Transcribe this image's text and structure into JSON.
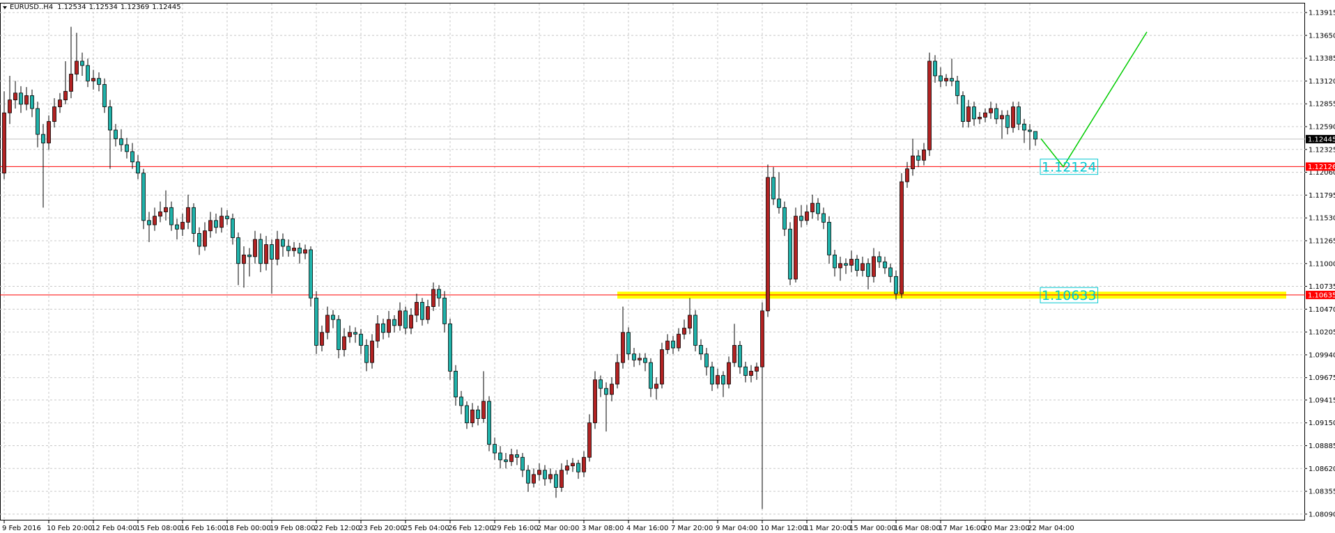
{
  "chart_data": {
    "type": "candlestick",
    "title": "EURUSD..H4",
    "up_color": "#b22222",
    "down_color": "#20b2aa",
    "grid": true,
    "ylim": [
      1.08,
      1.14
    ],
    "xlim": [
      -0.75,
      233.375
    ],
    "yticks": [
      1.13915,
      {
        "value": 1.1365,
        "label": "1.13650"
      },
      1.13385,
      {
        "value": 1.1312,
        "label": "1.13120"
      },
      1.12855,
      {
        "value": 1.1259,
        "label": "1.12590"
      },
      1.12325,
      {
        "value": 1.1206,
        "label": "1.12060"
      },
      1.11795,
      {
        "value": 1.1153,
        "label": "1.11530"
      },
      1.11265,
      {
        "value": 1.11,
        "label": "1.11000"
      },
      1.10735,
      {
        "value": 1.1047,
        "label": "1.10470"
      },
      1.10205,
      {
        "value": 1.0994,
        "label": "1.09940"
      },
      1.09675,
      1.09415,
      {
        "value": 1.0915,
        "label": "1.09150"
      },
      1.08885,
      {
        "value": 1.0862,
        "label": "1.08620"
      },
      1.08355,
      {
        "value": 1.0809,
        "label": "1.08090"
      }
    ],
    "xticks": [
      {
        "value": 0,
        "label": "9 Feb 2016"
      },
      {
        "value": 8,
        "label": "10 Feb 20:00"
      },
      {
        "value": 16,
        "label": "12 Feb 04:00"
      },
      {
        "value": 24,
        "label": "15 Feb 08:00"
      },
      {
        "value": 32,
        "label": "16 Feb 16:00"
      },
      {
        "value": 40,
        "label": "18 Feb 00:00"
      },
      {
        "value": 48,
        "label": "19 Feb 08:00"
      },
      {
        "value": 56,
        "label": "22 Feb 12:00"
      },
      {
        "value": 64,
        "label": "23 Feb 20:00"
      },
      {
        "value": 72,
        "label": "25 Feb 04:00"
      },
      {
        "value": 80,
        "label": "26 Feb 12:00"
      },
      {
        "value": 88,
        "label": "29 Feb 16:00"
      },
      {
        "value": 96,
        "label": "2 Mar 00:00"
      },
      {
        "value": 104,
        "label": "3 Mar 08:00"
      },
      {
        "value": 112,
        "label": "4 Mar 16:00"
      },
      {
        "value": 120,
        "label": "7 Mar 20:00"
      },
      {
        "value": 128,
        "label": "9 Mar 04:00"
      },
      {
        "value": 136,
        "label": "10 Mar 12:00"
      },
      {
        "value": 144,
        "label": "11 Mar 20:00"
      },
      {
        "value": 152,
        "label": "15 Mar 00:00"
      },
      {
        "value": 160,
        "label": "16 Mar 08:00"
      },
      {
        "value": 168,
        "label": "17 Mar 16:00"
      },
      {
        "value": 176,
        "label": "20 Mar 23:00"
      },
      {
        "value": 184,
        "label": "22 Mar 04:00"
      }
    ],
    "horizontal_lines": [
      {
        "value": 1.12126,
        "color": "#ff0000"
      },
      {
        "value": 1.10635,
        "color": "#ff0000"
      }
    ],
    "zone": {
      "price": 1.10633,
      "x": [
        110,
        230
      ],
      "color": "#ffff00"
    },
    "projection": {
      "x": [
        186,
        190,
        205
      ],
      "y": [
        1.1245,
        1.12124,
        1.1369
      ],
      "color": "#00cc00"
    },
    "annotation_color": "#00c8d0",
    "candles": [
      [
        1.1205,
        1.13,
        1.1198,
        1.1275
      ],
      [
        1.1275,
        1.1318,
        1.1262,
        1.129
      ],
      [
        1.129,
        1.1312,
        1.128,
        1.1298
      ],
      [
        1.1298,
        1.1306,
        1.1275,
        1.1285
      ],
      [
        1.1285,
        1.1305,
        1.1278,
        1.1295
      ],
      [
        1.1295,
        1.1302,
        1.127,
        1.128
      ],
      [
        1.128,
        1.1288,
        1.1235,
        1.125
      ],
      [
        1.125,
        1.1262,
        1.1165,
        1.124
      ],
      [
        1.124,
        1.1272,
        1.1232,
        1.1265
      ],
      [
        1.1265,
        1.1292,
        1.1258,
        1.1282
      ],
      [
        1.1282,
        1.1298,
        1.1275,
        1.129
      ],
      [
        1.129,
        1.1335,
        1.1285,
        1.13
      ],
      [
        1.13,
        1.1375,
        1.1292,
        1.132
      ],
      [
        1.132,
        1.1368,
        1.1312,
        1.1335
      ],
      [
        1.1335,
        1.1345,
        1.1318,
        1.133
      ],
      [
        1.133,
        1.1338,
        1.1305,
        1.1312
      ],
      [
        1.1312,
        1.1325,
        1.1302,
        1.1315
      ],
      [
        1.1315,
        1.1322,
        1.13,
        1.1308
      ],
      [
        1.1308,
        1.1315,
        1.1275,
        1.1282
      ],
      [
        1.1282,
        1.129,
        1.121,
        1.1255
      ],
      [
        1.1255,
        1.1262,
        1.1236,
        1.1245
      ],
      [
        1.1245,
        1.1256,
        1.123,
        1.1238
      ],
      [
        1.1238,
        1.1246,
        1.1222,
        1.123
      ],
      [
        1.123,
        1.124,
        1.121,
        1.1218
      ],
      [
        1.1218,
        1.1226,
        1.1198,
        1.1205
      ],
      [
        1.1205,
        1.121,
        1.114,
        1.115
      ],
      [
        1.115,
        1.116,
        1.1125,
        1.1145
      ],
      [
        1.1145,
        1.1165,
        1.1138,
        1.1155
      ],
      [
        1.1155,
        1.1172,
        1.1148,
        1.116
      ],
      [
        1.116,
        1.1185,
        1.115,
        1.1165
      ],
      [
        1.1165,
        1.1172,
        1.1138,
        1.1145
      ],
      [
        1.1145,
        1.1152,
        1.1128,
        1.114
      ],
      [
        1.114,
        1.1158,
        1.1132,
        1.1148
      ],
      [
        1.1148,
        1.118,
        1.114,
        1.1165
      ],
      [
        1.1165,
        1.117,
        1.1125,
        1.1135
      ],
      [
        1.1135,
        1.1142,
        1.111,
        1.112
      ],
      [
        1.112,
        1.1148,
        1.1115,
        1.1138
      ],
      [
        1.1138,
        1.116,
        1.113,
        1.115
      ],
      [
        1.115,
        1.1158,
        1.1135,
        1.1142
      ],
      [
        1.1142,
        1.1165,
        1.1136,
        1.1155
      ],
      [
        1.1155,
        1.1162,
        1.1145,
        1.1152
      ],
      [
        1.1152,
        1.1158,
        1.1122,
        1.113
      ],
      [
        1.113,
        1.1136,
        1.1075,
        1.11
      ],
      [
        1.11,
        1.112,
        1.1072,
        1.111
      ],
      [
        1.111,
        1.1118,
        1.1085,
        1.1108
      ],
      [
        1.1108,
        1.1138,
        1.11,
        1.1128
      ],
      [
        1.1128,
        1.1135,
        1.109,
        1.11
      ],
      [
        1.11,
        1.1132,
        1.1092,
        1.1122
      ],
      [
        1.1122,
        1.1128,
        1.1065,
        1.1105
      ],
      [
        1.1105,
        1.1138,
        1.1098,
        1.1128
      ],
      [
        1.1128,
        1.1135,
        1.1108,
        1.112
      ],
      [
        1.112,
        1.1128,
        1.1108,
        1.1115
      ],
      [
        1.1115,
        1.1125,
        1.1108,
        1.1118
      ],
      [
        1.1118,
        1.1124,
        1.11,
        1.1112
      ],
      [
        1.1112,
        1.1122,
        1.1105,
        1.1116
      ],
      [
        1.1116,
        1.112,
        1.105,
        1.106
      ],
      [
        1.106,
        1.1068,
        1.0995,
        1.1005
      ],
      [
        1.1005,
        1.1028,
        1.0998,
        1.102
      ],
      [
        1.102,
        1.105,
        1.1012,
        1.104
      ],
      [
        1.104,
        1.1046,
        1.1025,
        1.1035
      ],
      [
        1.1035,
        1.104,
        1.099,
        1.1
      ],
      [
        1.1,
        1.1025,
        1.0992,
        1.1015
      ],
      [
        1.1015,
        1.1028,
        1.1008,
        1.102
      ],
      [
        1.102,
        1.1026,
        1.1008,
        1.1018
      ],
      [
        1.1018,
        1.1024,
        1.0995,
        1.1005
      ],
      [
        1.1005,
        1.1012,
        1.0975,
        1.0985
      ],
      [
        1.0985,
        1.1018,
        1.0978,
        1.101
      ],
      [
        1.101,
        1.104,
        1.1002,
        1.103
      ],
      [
        1.103,
        1.1036,
        1.1012,
        1.102
      ],
      [
        1.102,
        1.1045,
        1.1014,
        1.1035
      ],
      [
        1.1035,
        1.104,
        1.102,
        1.1028
      ],
      [
        1.1028,
        1.1055,
        1.1022,
        1.1045
      ],
      [
        1.1045,
        1.105,
        1.1018,
        1.1025
      ],
      [
        1.1025,
        1.1048,
        1.1018,
        1.104
      ],
      [
        1.104,
        1.1065,
        1.1032,
        1.1055
      ],
      [
        1.1055,
        1.106,
        1.1028,
        1.1035
      ],
      [
        1.1035,
        1.1058,
        1.103,
        1.105
      ],
      [
        1.105,
        1.1078,
        1.1045,
        1.107
      ],
      [
        1.107,
        1.1075,
        1.105,
        1.106
      ],
      [
        1.106,
        1.1068,
        1.102,
        1.103
      ],
      [
        1.103,
        1.1036,
        1.0965,
        1.0975
      ],
      [
        1.0975,
        1.0982,
        1.0935,
        1.0945
      ],
      [
        1.0945,
        1.0952,
        1.0925,
        1.0935
      ],
      [
        1.0935,
        1.094,
        1.0908,
        1.0915
      ],
      [
        1.0915,
        1.0938,
        1.091,
        1.093
      ],
      [
        1.093,
        1.0935,
        1.0912,
        1.092
      ],
      [
        1.092,
        1.0975,
        1.0915,
        1.094
      ],
      [
        1.094,
        1.0946,
        1.0882,
        1.089
      ],
      [
        1.089,
        1.0898,
        1.0872,
        1.088
      ],
      [
        1.088,
        1.0888,
        1.0862,
        1.0872
      ],
      [
        1.0872,
        1.088,
        1.0862,
        1.087
      ],
      [
        1.087,
        1.0885,
        1.0865,
        1.0878
      ],
      [
        1.0878,
        1.0884,
        1.0866,
        1.0875
      ],
      [
        1.0875,
        1.088,
        1.0852,
        1.086
      ],
      [
        1.086,
        1.0866,
        1.0835,
        1.0845
      ],
      [
        1.0845,
        1.0862,
        1.084,
        1.0855
      ],
      [
        1.0855,
        1.0868,
        1.0848,
        1.086
      ],
      [
        1.086,
        1.0866,
        1.0842,
        1.085
      ],
      [
        1.085,
        1.0862,
        1.0845,
        1.0855
      ],
      [
        1.0855,
        1.086,
        1.0828,
        1.084
      ],
      [
        1.084,
        1.0868,
        1.0835,
        1.086
      ],
      [
        1.086,
        1.0872,
        1.0855,
        1.0865
      ],
      [
        1.0865,
        1.0874,
        1.0858,
        1.0868
      ],
      [
        1.0868,
        1.0872,
        1.085,
        1.0858
      ],
      [
        1.0858,
        1.0882,
        1.0852,
        1.0875
      ],
      [
        1.0875,
        1.0925,
        1.087,
        1.0915
      ],
      [
        1.0915,
        1.0975,
        1.0908,
        1.0965
      ],
      [
        1.0965,
        1.097,
        1.0945,
        1.0955
      ],
      [
        1.0955,
        1.0962,
        1.0905,
        1.0948
      ],
      [
        1.0948,
        1.0968,
        1.094,
        1.096
      ],
      [
        1.096,
        1.0995,
        1.0955,
        1.0985
      ],
      [
        1.0985,
        1.105,
        1.0978,
        1.102
      ],
      [
        1.102,
        1.1026,
        1.0988,
        1.0995
      ],
      [
        1.0995,
        1.1002,
        1.098,
        1.0988
      ],
      [
        1.0988,
        1.0996,
        1.0982,
        1.099
      ],
      [
        1.099,
        1.0996,
        1.0975,
        1.0985
      ],
      [
        1.0985,
        1.099,
        1.0945,
        1.0955
      ],
      [
        1.0955,
        1.0968,
        1.0942,
        1.096
      ],
      [
        1.096,
        1.1008,
        1.0955,
        1.1
      ],
      [
        1.1,
        1.1018,
        1.0995,
        1.101
      ],
      [
        1.101,
        1.1016,
        1.0995,
        1.1002
      ],
      [
        1.1002,
        1.1025,
        1.0998,
        1.1018
      ],
      [
        1.1018,
        1.1035,
        1.1012,
        1.1025
      ],
      [
        1.1025,
        1.106,
        1.1018,
        1.104
      ],
      [
        1.104,
        1.1046,
        1.0998,
        1.1005
      ],
      [
        1.1005,
        1.1012,
        1.0988,
        1.0995
      ],
      [
        1.0995,
        1.1002,
        1.097,
        1.098
      ],
      [
        1.098,
        1.0986,
        1.0952,
        1.096
      ],
      [
        1.096,
        1.0978,
        1.0955,
        1.097
      ],
      [
        1.097,
        1.0975,
        1.0945,
        1.096
      ],
      [
        1.096,
        1.0992,
        1.0955,
        1.0985
      ],
      [
        1.0985,
        1.103,
        1.098,
        1.1005
      ],
      [
        1.1005,
        1.101,
        1.0972,
        1.098
      ],
      [
        1.098,
        1.0986,
        1.0962,
        1.097
      ],
      [
        1.097,
        1.0982,
        1.0962,
        1.0975
      ],
      [
        1.0975,
        1.0985,
        1.0965,
        1.098
      ],
      [
        1.098,
        1.1055,
        1.0815,
        1.1045
      ],
      [
        1.1045,
        1.1215,
        1.1038,
        1.12
      ],
      [
        1.12,
        1.1212,
        1.1168,
        1.1175
      ],
      [
        1.1175,
        1.1206,
        1.1158,
        1.1165
      ],
      [
        1.1165,
        1.1172,
        1.1132,
        1.114
      ],
      [
        1.114,
        1.1148,
        1.1075,
        1.1082
      ],
      [
        1.1082,
        1.1165,
        1.1078,
        1.1155
      ],
      [
        1.1155,
        1.1168,
        1.1142,
        1.115
      ],
      [
        1.115,
        1.1168,
        1.1145,
        1.116
      ],
      [
        1.116,
        1.118,
        1.1152,
        1.117
      ],
      [
        1.117,
        1.1176,
        1.115,
        1.1158
      ],
      [
        1.1158,
        1.1165,
        1.114,
        1.1148
      ],
      [
        1.1148,
        1.1155,
        1.11,
        1.111
      ],
      [
        1.111,
        1.1116,
        1.1085,
        1.1095
      ],
      [
        1.1095,
        1.1108,
        1.108,
        1.11
      ],
      [
        1.11,
        1.1106,
        1.1088,
        1.1098
      ],
      [
        1.1098,
        1.1115,
        1.109,
        1.1105
      ],
      [
        1.1105,
        1.111,
        1.1085,
        1.1092
      ],
      [
        1.1092,
        1.1108,
        1.1085,
        1.11
      ],
      [
        1.11,
        1.1106,
        1.107,
        1.1085
      ],
      [
        1.1085,
        1.1118,
        1.1078,
        1.1108
      ],
      [
        1.1108,
        1.1114,
        1.1095,
        1.1102
      ],
      [
        1.1102,
        1.1108,
        1.1088,
        1.1095
      ],
      [
        1.1095,
        1.11,
        1.1078,
        1.1085
      ],
      [
        1.1085,
        1.1092,
        1.1058,
        1.1065
      ],
      [
        1.1065,
        1.1205,
        1.106,
        1.1195
      ],
      [
        1.1195,
        1.1218,
        1.1188,
        1.121
      ],
      [
        1.121,
        1.1245,
        1.1202,
        1.1225
      ],
      [
        1.1225,
        1.1232,
        1.1212,
        1.122
      ],
      [
        1.122,
        1.124,
        1.1214,
        1.1232
      ],
      [
        1.1232,
        1.1345,
        1.1225,
        1.1335
      ],
      [
        1.1335,
        1.1342,
        1.131,
        1.1318
      ],
      [
        1.1318,
        1.1328,
        1.1305,
        1.1312
      ],
      [
        1.1312,
        1.132,
        1.1306,
        1.1315
      ],
      [
        1.1315,
        1.1338,
        1.1306,
        1.1312
      ],
      [
        1.1312,
        1.1318,
        1.1285,
        1.1295
      ],
      [
        1.1295,
        1.13,
        1.1258,
        1.1265
      ],
      [
        1.1265,
        1.129,
        1.1258,
        1.1282
      ],
      [
        1.1282,
        1.1288,
        1.126,
        1.1268
      ],
      [
        1.1268,
        1.1276,
        1.1262,
        1.127
      ],
      [
        1.127,
        1.128,
        1.1264,
        1.1275
      ],
      [
        1.1275,
        1.1288,
        1.1268,
        1.128
      ],
      [
        1.128,
        1.1286,
        1.1262,
        1.1268
      ],
      [
        1.1268,
        1.1278,
        1.1245,
        1.1272
      ],
      [
        1.1272,
        1.1278,
        1.125,
        1.1258
      ],
      [
        1.1258,
        1.1288,
        1.1252,
        1.1282
      ],
      [
        1.1282,
        1.1288,
        1.1255,
        1.1262
      ],
      [
        1.1262,
        1.1268,
        1.124,
        1.1255
      ],
      [
        1.1255,
        1.1262,
        1.1232,
        1.12534
      ],
      [
        1.12534,
        1.12534,
        1.12369,
        1.12445
      ]
    ]
  }
}
